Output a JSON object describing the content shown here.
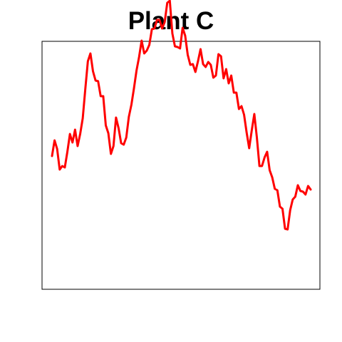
{
  "chart_data": {
    "type": "line",
    "title": "Plant C",
    "xlabel": "",
    "ylabel": "",
    "axes_visible": false,
    "grid": false,
    "frame": true,
    "series": [
      {
        "color": "#ff0000",
        "values": [
          174,
          196,
          184,
          155,
          160,
          158,
          180,
          205,
          193,
          211,
          188,
          205,
          227,
          268,
          307,
          318,
          293,
          280,
          279,
          258,
          258,
          217,
          206,
          177,
          188,
          228,
          213,
          192,
          190,
          200,
          229,
          246,
          269,
          294,
          313,
          336,
          318,
          322,
          330,
          352,
          353,
          365,
          365,
          353,
          362,
          389,
          392,
          346,
          328,
          327,
          325,
          354,
          343,
          316,
          302,
          303,
          292,
          307,
          324,
          303,
          299,
          306,
          302,
          284,
          287,
          317,
          314,
          283,
          296,
          276,
          287,
          263,
          263,
          240,
          244,
          232,
          207,
          185,
          210,
          233,
          200,
          160,
          160,
          172,
          180,
          154,
          144,
          128,
          126,
          103,
          100,
          72,
          71,
          98,
          113,
          117,
          133,
          125,
          124,
          120,
          132,
          127
        ]
      }
    ]
  }
}
